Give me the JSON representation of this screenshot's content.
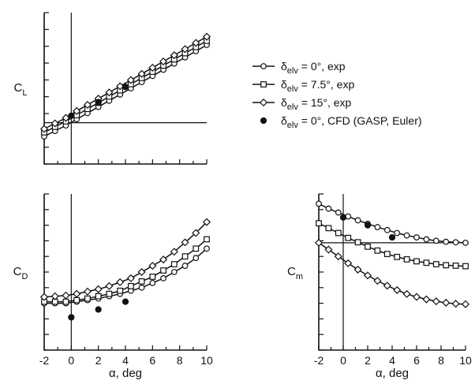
{
  "chart_data": [
    {
      "id": "cl",
      "type": "line",
      "ylabel_main": "C",
      "ylabel_sub": "L",
      "xlabel": "",
      "xlim": [
        -2,
        10
      ],
      "ylim": [
        -0.6,
        1.6
      ],
      "x": [
        -2,
        -1.2,
        -0.4,
        0.4,
        1.2,
        2,
        2.8,
        3.6,
        4.4,
        5.2,
        6,
        6.8,
        7.6,
        8.4,
        9.2,
        10
      ],
      "series": [
        {
          "name": "δelv = 0°, exp",
          "marker": "circle",
          "values": [
            -0.2,
            -0.12,
            -0.04,
            0.05,
            0.14,
            0.23,
            0.32,
            0.41,
            0.5,
            0.59,
            0.68,
            0.77,
            0.86,
            0.95,
            1.04,
            1.13
          ]
        },
        {
          "name": "δelv = 7.5°, exp",
          "marker": "square",
          "values": [
            -0.14,
            -0.06,
            0.02,
            0.11,
            0.2,
            0.29,
            0.38,
            0.47,
            0.56,
            0.65,
            0.74,
            0.83,
            0.92,
            1.01,
            1.1,
            1.19
          ]
        },
        {
          "name": "δelv = 15°, exp",
          "marker": "diamond",
          "values": [
            -0.09,
            -0.01,
            0.07,
            0.17,
            0.26,
            0.35,
            0.44,
            0.53,
            0.62,
            0.71,
            0.8,
            0.89,
            0.98,
            1.07,
            1.16,
            1.25
          ]
        },
        {
          "name": "δelv = 0°, CFD (GASP, Euler)",
          "marker": "filled",
          "points": [
            [
              0,
              0.1
            ],
            [
              2,
              0.3
            ],
            [
              4,
              0.52
            ]
          ]
        }
      ]
    },
    {
      "id": "cd",
      "type": "line",
      "ylabel_main": "C",
      "ylabel_sub": "D",
      "xlabel": "α, deg",
      "xlim": [
        -2,
        10
      ],
      "ylim": [
        0,
        1
      ],
      "x": [
        -2,
        -1.2,
        -0.4,
        0.4,
        1.2,
        2,
        2.8,
        3.6,
        4.4,
        5.2,
        6,
        6.8,
        7.6,
        8.4,
        9.2,
        10
      ],
      "xticks": [
        -2,
        0,
        2,
        4,
        6,
        8,
        10
      ],
      "series": [
        {
          "name": "δelv = 0°, exp",
          "marker": "circle",
          "values": [
            0.3,
            0.3,
            0.3,
            0.31,
            0.32,
            0.33,
            0.345,
            0.36,
            0.38,
            0.4,
            0.43,
            0.46,
            0.5,
            0.54,
            0.59,
            0.65
          ]
        },
        {
          "name": "δelv = 7.5°, exp",
          "marker": "square",
          "values": [
            0.31,
            0.31,
            0.31,
            0.32,
            0.33,
            0.345,
            0.36,
            0.38,
            0.41,
            0.44,
            0.47,
            0.51,
            0.55,
            0.6,
            0.65,
            0.71
          ]
        },
        {
          "name": "δelv = 15°, exp",
          "marker": "diamond",
          "values": [
            0.34,
            0.345,
            0.35,
            0.36,
            0.375,
            0.39,
            0.41,
            0.435,
            0.46,
            0.5,
            0.54,
            0.58,
            0.63,
            0.69,
            0.75,
            0.82
          ]
        },
        {
          "name": "δelv = 0°, CFD (GASP, Euler)",
          "marker": "filled",
          "points": [
            [
              0,
              0.21
            ],
            [
              2,
              0.26
            ],
            [
              4,
              0.31
            ]
          ]
        }
      ]
    },
    {
      "id": "cm",
      "type": "line",
      "ylabel_main": "C",
      "ylabel_sub": "m",
      "xlabel": "α, deg",
      "xlim": [
        -2,
        10
      ],
      "ylim": [
        -0.2,
        0.12
      ],
      "x": [
        -2,
        -1.2,
        -0.4,
        0.4,
        1.2,
        2,
        2.8,
        3.6,
        4.4,
        5.2,
        6,
        6.8,
        7.6,
        8.4,
        9.2,
        10
      ],
      "xticks": [
        -2,
        0,
        2,
        4,
        6,
        8,
        10
      ],
      "series": [
        {
          "name": "δelv = 0°, exp",
          "marker": "circle",
          "values": [
            0.1,
            0.09,
            0.082,
            0.074,
            0.066,
            0.059,
            0.052,
            0.046,
            0.04,
            0.035,
            0.031,
            0.027,
            0.024,
            0.022,
            0.021,
            0.02
          ]
        },
        {
          "name": "δelv = 7.5°, exp",
          "marker": "square",
          "values": [
            0.06,
            0.05,
            0.04,
            0.03,
            0.021,
            0.012,
            0.004,
            -0.003,
            -0.009,
            -0.014,
            -0.018,
            -0.021,
            -0.024,
            -0.026,
            -0.027,
            -0.028
          ]
        },
        {
          "name": "δelv = 15°, exp",
          "marker": "diamond",
          "values": [
            0.02,
            0.006,
            -0.008,
            -0.022,
            -0.035,
            -0.047,
            -0.058,
            -0.068,
            -0.077,
            -0.085,
            -0.091,
            -0.096,
            -0.1,
            -0.103,
            -0.105,
            -0.106
          ]
        },
        {
          "name": "δelv = 0°, CFD (GASP, Euler)",
          "marker": "filled",
          "points": [
            [
              0,
              0.072
            ],
            [
              2,
              0.056
            ],
            [
              4,
              0.031
            ]
          ]
        }
      ]
    }
  ],
  "legend": {
    "placement": "right",
    "items": [
      {
        "prefix": "δ",
        "sub": "elv",
        "text": " = 0°, exp",
        "marker": "circle"
      },
      {
        "prefix": "δ",
        "sub": "elv",
        "text": " = 7.5°, exp",
        "marker": "square"
      },
      {
        "prefix": "δ",
        "sub": "elv",
        "text": " = 15°, exp",
        "marker": "diamond"
      },
      {
        "prefix": "δ",
        "sub": "elv",
        "text": " = 0°, CFD (GASP, Euler)",
        "marker": "filled"
      }
    ]
  }
}
